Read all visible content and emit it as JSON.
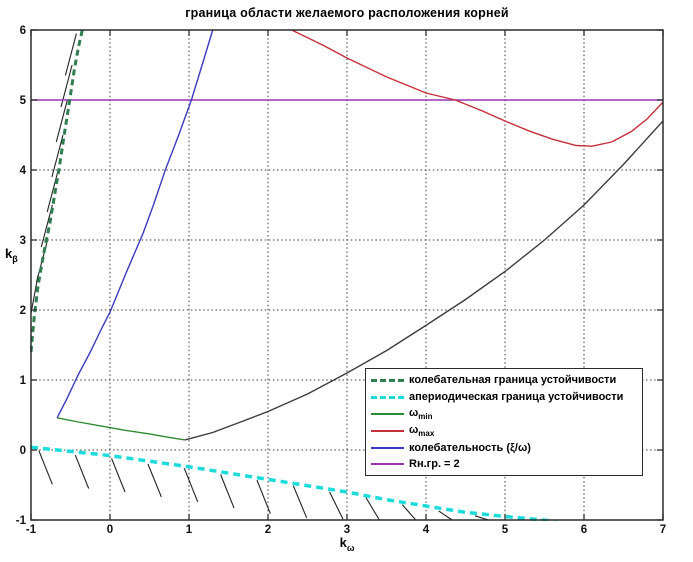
{
  "title": "граница области желаемого расположения корней",
  "axes": {
    "x_label": {
      "base": "k",
      "sub": "ω"
    },
    "y_label": {
      "base": "k",
      "sub": "β"
    },
    "x_ticks": [
      -1,
      0,
      1,
      2,
      3,
      4,
      5,
      6,
      7
    ],
    "y_ticks": [
      -1,
      0,
      1,
      2,
      3,
      4,
      5,
      6
    ],
    "xlim": [
      -1,
      7
    ],
    "ylim": [
      -1,
      6
    ],
    "grid": "dotted"
  },
  "colors": {
    "background": "#ffffff",
    "axis_border": "#2b2b2b",
    "grid": "#3c3c3c",
    "tick_label": "#111111",
    "oscillatory_boundary": "#2f7e52",
    "aperiodic_boundary": "#1ddbdb",
    "omega_min": "#2e8b30",
    "omega_max": "#c4303a",
    "oscillation_index": "#3a3ac0",
    "r_boundary": "#9c33b3",
    "unlabeled_curve": "#3c3c3c",
    "hatch": "#222222"
  },
  "legend": {
    "entries": [
      {
        "text": "колебательная граница устойчивости",
        "sub": "",
        "post": "",
        "color": "#2f7e52",
        "style": "dashed"
      },
      {
        "text": "апериодическая граница устойчивости",
        "sub": "",
        "post": "",
        "color": "#1ddbdb",
        "style": "dashed"
      },
      {
        "text": "ω",
        "sub": "min",
        "post": "",
        "color": "#2e8b30",
        "style": "solid"
      },
      {
        "text": "ω",
        "sub": "max",
        "post": "",
        "color": "#c4303a",
        "style": "solid"
      },
      {
        "text": "колебательность (ξ/ω)",
        "sub": "",
        "post": "",
        "color": "#3a3ac0",
        "style": "solid"
      },
      {
        "text": "Rн.гр. = 2",
        "sub": "",
        "post": "",
        "color": "#9c33b3",
        "style": "solid"
      }
    ]
  },
  "chart_data": {
    "type": "line",
    "title": "граница области желаемого расположения корней",
    "xlabel": "k_ω",
    "ylabel": "k_β",
    "xlim": [
      -1,
      7
    ],
    "ylim": [
      -1,
      6
    ],
    "grid": true,
    "legend_position": "middle-right",
    "series": [
      {
        "name": "колебательная граница устойчивости",
        "color": "#2f7e52",
        "width": 3,
        "dash": "6 4",
        "points": [
          [
            -1.0,
            1.4
          ],
          [
            -0.96,
            1.9
          ],
          [
            -0.91,
            2.35
          ],
          [
            -0.84,
            2.8
          ],
          [
            -0.76,
            3.25
          ],
          [
            -0.7,
            3.65
          ],
          [
            -0.64,
            4.05
          ],
          [
            -0.58,
            4.5
          ],
          [
            -0.51,
            5.0
          ],
          [
            -0.45,
            5.45
          ],
          [
            -0.4,
            5.75
          ],
          [
            -0.35,
            6.0
          ]
        ]
      },
      {
        "name": "апериодическая граница устойчивости",
        "color": "#1ddbdb",
        "width": 3.5,
        "dash": "7 5",
        "points": [
          [
            -1,
            0.04
          ],
          [
            -0.5,
            -0.02
          ],
          [
            0,
            -0.08
          ],
          [
            0.5,
            -0.16
          ],
          [
            1,
            -0.24
          ],
          [
            1.5,
            -0.33
          ],
          [
            2,
            -0.42
          ],
          [
            2.5,
            -0.51
          ],
          [
            3,
            -0.6
          ],
          [
            3.5,
            -0.71
          ],
          [
            4,
            -0.8
          ],
          [
            4.5,
            -0.89
          ],
          [
            5,
            -0.95
          ],
          [
            5.3,
            -0.98
          ],
          [
            5.65,
            -1.02
          ]
        ]
      },
      {
        "name": "ω_min",
        "color": "#2e8b30",
        "width": 1.4,
        "dash": null,
        "points": [
          [
            -0.67,
            0.46
          ],
          [
            -0.4,
            0.4
          ],
          [
            -0.1,
            0.34
          ],
          [
            0.2,
            0.28
          ],
          [
            0.5,
            0.23
          ],
          [
            0.75,
            0.18
          ],
          [
            0.95,
            0.145
          ]
        ]
      },
      {
        "name": "unlabeled black curve",
        "color": "#3c3c3c",
        "width": 1.4,
        "dash": null,
        "points": [
          [
            0.95,
            0.145
          ],
          [
            1.3,
            0.25
          ],
          [
            1.7,
            0.42
          ],
          [
            2,
            0.55
          ],
          [
            2.5,
            0.8
          ],
          [
            3,
            1.1
          ],
          [
            3.5,
            1.42
          ],
          [
            4,
            1.78
          ],
          [
            4.5,
            2.15
          ],
          [
            5,
            2.55
          ],
          [
            5.5,
            3.0
          ],
          [
            6,
            3.5
          ],
          [
            6.5,
            4.08
          ],
          [
            7,
            4.7
          ]
        ]
      },
      {
        "name": "ω_max",
        "color": "#c4303a",
        "width": 1.4,
        "dash": null,
        "points": [
          [
            2.3,
            6.0
          ],
          [
            2.7,
            5.78
          ],
          [
            3.0,
            5.6
          ],
          [
            3.5,
            5.33
          ],
          [
            4.0,
            5.1
          ],
          [
            4.37,
            5.0
          ],
          [
            4.7,
            4.85
          ],
          [
            5.0,
            4.7
          ],
          [
            5.3,
            4.56
          ],
          [
            5.6,
            4.44
          ],
          [
            5.9,
            4.35
          ],
          [
            6.1,
            4.34
          ],
          [
            6.35,
            4.4
          ],
          [
            6.6,
            4.55
          ],
          [
            6.8,
            4.73
          ],
          [
            7,
            4.97
          ]
        ]
      },
      {
        "name": "колебательность (ξ/ω)",
        "color": "#3a3ac0",
        "width": 1.4,
        "dash": null,
        "points": [
          [
            -0.67,
            0.46
          ],
          [
            -0.55,
            0.72
          ],
          [
            -0.4,
            1.08
          ],
          [
            -0.25,
            1.4
          ],
          [
            -0.1,
            1.75
          ],
          [
            0,
            1.97
          ],
          [
            0.2,
            2.52
          ],
          [
            0.42,
            3.1
          ],
          [
            0.55,
            3.5
          ],
          [
            0.7,
            4.0
          ],
          [
            0.87,
            4.5
          ],
          [
            1.03,
            5.0
          ],
          [
            1.18,
            5.55
          ],
          [
            1.3,
            6.0
          ]
        ]
      },
      {
        "name": "Rн.гр. = 2",
        "color": "#9c33b3",
        "width": 1.6,
        "dash": null,
        "points": [
          [
            -1,
            5
          ],
          [
            7,
            5
          ]
        ]
      }
    ],
    "hatch_marks": [
      {
        "name": "hatching below aperiodic boundary",
        "color": "#222222",
        "width": 1.1,
        "segments": [
          [
            -0.9,
            -0.01,
            -0.73,
            -0.49
          ],
          [
            -0.44,
            -0.07,
            -0.27,
            -0.55
          ],
          [
            0.02,
            -0.12,
            0.19,
            -0.6
          ],
          [
            0.48,
            -0.2,
            0.65,
            -0.67
          ],
          [
            0.94,
            -0.26,
            1.11,
            -0.74
          ],
          [
            1.4,
            -0.35,
            1.57,
            -0.83
          ],
          [
            1.86,
            -0.43,
            2.03,
            -0.91
          ],
          [
            2.32,
            -0.51,
            2.49,
            -0.97
          ],
          [
            2.78,
            -0.6,
            2.95,
            -0.99
          ],
          [
            3.24,
            -0.68,
            3.41,
            -1.0
          ],
          [
            3.7,
            -0.78,
            3.87,
            -1.0
          ],
          [
            4.16,
            -0.87,
            4.33,
            -1.0
          ],
          [
            4.62,
            -0.94,
            4.79,
            -1.0
          ]
        ]
      },
      {
        "name": "hatching left of oscillatory boundary",
        "color": "#222222",
        "width": 1.1,
        "segments": [
          [
            -0.91,
            2.5,
            -1.0,
            1.95
          ],
          [
            -0.79,
            3.0,
            -0.93,
            2.4
          ],
          [
            -0.73,
            3.5,
            -0.87,
            2.9
          ],
          [
            -0.655,
            4.0,
            -0.795,
            3.4
          ],
          [
            -0.595,
            4.5,
            -0.735,
            3.9
          ],
          [
            -0.54,
            5.0,
            -0.68,
            4.4
          ],
          [
            -0.48,
            5.5,
            -0.62,
            4.9
          ],
          [
            -0.425,
            5.95,
            -0.565,
            5.35
          ]
        ]
      }
    ]
  }
}
